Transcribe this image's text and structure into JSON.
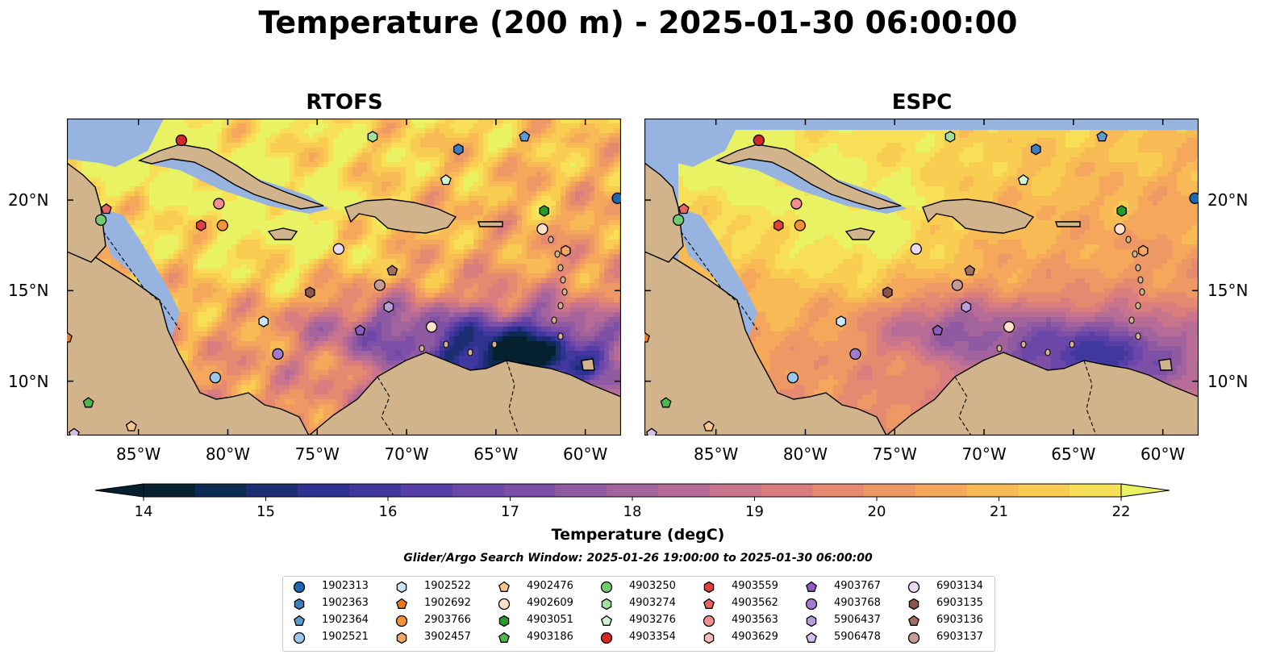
{
  "title": "Temperature (200 m) - 2025-01-30 06:00:00",
  "panels": [
    {
      "title": "RTOFS"
    },
    {
      "title": "ESPC"
    }
  ],
  "lon_ticks": [
    "85°W",
    "80°W",
    "75°W",
    "70°W",
    "65°W",
    "60°W"
  ],
  "lat_ticks": [
    "20°N",
    "15°N",
    "10°N"
  ],
  "map_extent": {
    "lon": [
      -89,
      -58
    ],
    "lat": [
      7,
      24.5
    ]
  },
  "colorbar": {
    "label": "Temperature (degC)",
    "ticks": [
      "14",
      "15",
      "16",
      "17",
      "18",
      "19",
      "20",
      "21",
      "22"
    ],
    "range": [
      14,
      22
    ],
    "extend": "both",
    "colormap": "thermal",
    "colors": [
      "#05202f",
      "#0b2b55",
      "#1b2e74",
      "#2e3290",
      "#40389f",
      "#553ea5",
      "#6a47a8",
      "#7d4fa6",
      "#905aa3",
      "#a3649e",
      "#b66c96",
      "#c8748c",
      "#d97d7f",
      "#e68971",
      "#ee9866",
      "#f5a85b",
      "#f8ba54",
      "#f9cc52",
      "#f7df57",
      "#e9f262"
    ]
  },
  "search_window": "Glider/Argo Search Window: 2025-01-26 19:00:00 to 2025-01-30 06:00:00",
  "legend": [
    {
      "id": "1902313",
      "marker": "circle",
      "color": "#1f66b0"
    },
    {
      "id": "1902363",
      "marker": "hexagon",
      "color": "#3d7fbd"
    },
    {
      "id": "1902364",
      "marker": "pentagon",
      "color": "#5c9ad0"
    },
    {
      "id": "1902521",
      "marker": "circle",
      "color": "#9ac8ea"
    },
    {
      "id": "1902522",
      "marker": "hexagon",
      "color": "#c9e6f7"
    },
    {
      "id": "1902692",
      "marker": "pentagon",
      "color": "#f07a1a"
    },
    {
      "id": "2903766",
      "marker": "circle",
      "color": "#f39238"
    },
    {
      "id": "3902457",
      "marker": "hexagon",
      "color": "#f7a863"
    },
    {
      "id": "4902476",
      "marker": "pentagon",
      "color": "#fbc690"
    },
    {
      "id": "4902609",
      "marker": "circle",
      "color": "#fde0c5"
    },
    {
      "id": "4903051",
      "marker": "hexagon",
      "color": "#2a9a2a"
    },
    {
      "id": "4903186",
      "marker": "pentagon",
      "color": "#4cb84c"
    },
    {
      "id": "4903250",
      "marker": "circle",
      "color": "#6fcc6f"
    },
    {
      "id": "4903274",
      "marker": "hexagon",
      "color": "#9fe09f"
    },
    {
      "id": "4903276",
      "marker": "pentagon",
      "color": "#cff4cf"
    },
    {
      "id": "4903354",
      "marker": "circle",
      "color": "#d62728"
    },
    {
      "id": "4903559",
      "marker": "hexagon",
      "color": "#e0403f"
    },
    {
      "id": "4903562",
      "marker": "pentagon",
      "color": "#ea6464"
    },
    {
      "id": "4903563",
      "marker": "circle",
      "color": "#f28e8e"
    },
    {
      "id": "4903629",
      "marker": "hexagon",
      "color": "#f9b9b9"
    },
    {
      "id": "4903767",
      "marker": "pentagon",
      "color": "#8e5cc2"
    },
    {
      "id": "4903768",
      "marker": "circle",
      "color": "#a47ad0"
    },
    {
      "id": "5906437",
      "marker": "hexagon",
      "color": "#bc9ddc"
    },
    {
      "id": "5906478",
      "marker": "pentagon",
      "color": "#d3c0ea"
    },
    {
      "id": "6903134",
      "marker": "circle",
      "color": "#ead9f5"
    },
    {
      "id": "6903135",
      "marker": "hexagon",
      "color": "#8c564b"
    },
    {
      "id": "6903136",
      "marker": "pentagon",
      "color": "#a36e62"
    },
    {
      "id": "6903137",
      "marker": "circle",
      "color": "#c49c94"
    }
  ],
  "floats": [
    {
      "id": "4903354",
      "lon": -82.6,
      "lat": 23.3
    },
    {
      "id": "4903274",
      "lon": -71.9,
      "lat": 23.5
    },
    {
      "id": "1902364",
      "lon": -63.4,
      "lat": 23.5
    },
    {
      "id": "1902363",
      "lon": -67.1,
      "lat": 22.8
    },
    {
      "id": "4903276",
      "lon": -67.8,
      "lat": 21.1
    },
    {
      "id": "1902313",
      "lon": -58.2,
      "lat": 20.1
    },
    {
      "id": "4903562",
      "lon": -86.8,
      "lat": 19.5
    },
    {
      "id": "4903250",
      "lon": -87.1,
      "lat": 18.9
    },
    {
      "id": "4903563",
      "lon": -80.5,
      "lat": 19.8
    },
    {
      "id": "4903559",
      "lon": -81.5,
      "lat": 18.6
    },
    {
      "id": "2903766",
      "lon": -80.3,
      "lat": 18.6
    },
    {
      "id": "4903051",
      "lon": -62.3,
      "lat": 19.4
    },
    {
      "id": "4902609",
      "lon": -62.4,
      "lat": 18.4
    },
    {
      "id": "6903134",
      "lon": -73.8,
      "lat": 17.3
    },
    {
      "id": "3902457",
      "lon": -61.1,
      "lat": 17.2
    },
    {
      "id": "6903136",
      "lon": -70.8,
      "lat": 16.1
    },
    {
      "id": "6903135",
      "lon": -75.4,
      "lat": 14.9
    },
    {
      "id": "6903137",
      "lon": -71.5,
      "lat": 15.3
    },
    {
      "id": "5906437",
      "lon": -71.0,
      "lat": 14.1
    },
    {
      "id": "1902522",
      "lon": -78.0,
      "lat": 13.3
    },
    {
      "id": "4903767",
      "lon": -72.6,
      "lat": 12.8
    },
    {
      "id": "4902609",
      "lon": -68.6,
      "lat": 13.0
    },
    {
      "id": "4903768",
      "lon": -77.2,
      "lat": 11.5
    },
    {
      "id": "1902521",
      "lon": -80.7,
      "lat": 10.2
    },
    {
      "id": "1902692",
      "lon": -89.0,
      "lat": 12.4
    },
    {
      "id": "4903186",
      "lon": -87.8,
      "lat": 8.8
    },
    {
      "id": "4902476",
      "lon": -85.4,
      "lat": 7.5
    },
    {
      "id": "5906478",
      "lon": -88.6,
      "lat": 7.1
    }
  ]
}
